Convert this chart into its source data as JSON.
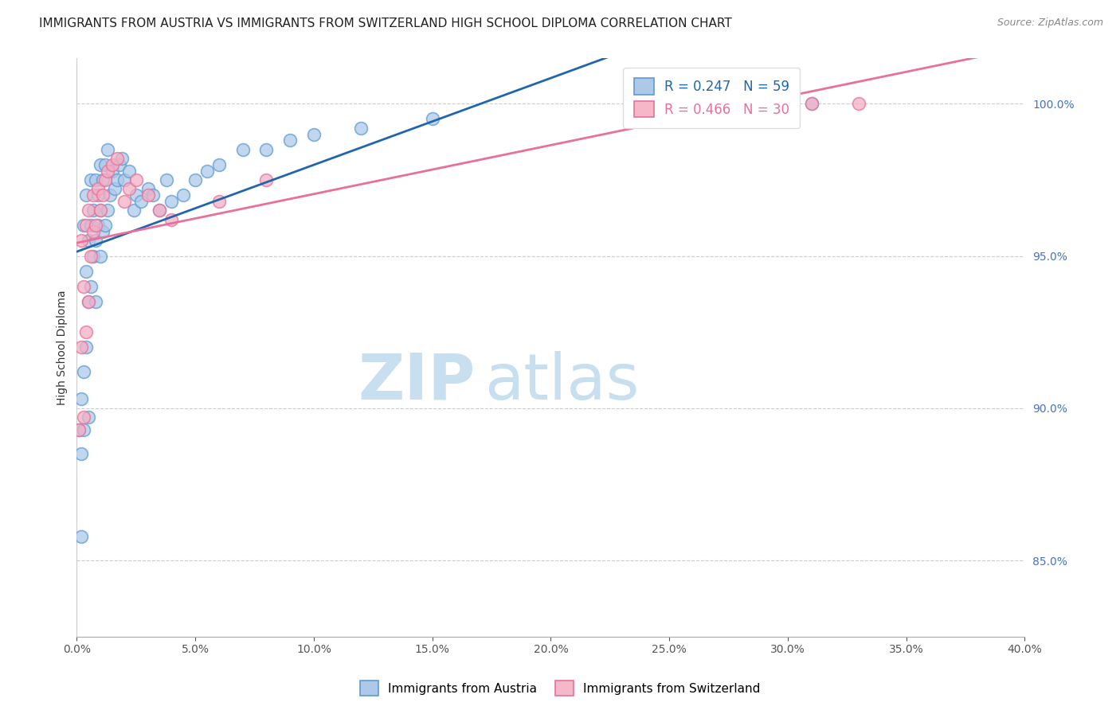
{
  "title": "IMMIGRANTS FROM AUSTRIA VS IMMIGRANTS FROM SWITZERLAND HIGH SCHOOL DIPLOMA CORRELATION CHART",
  "source": "Source: ZipAtlas.com",
  "xlabel": "",
  "ylabel": "High School Diploma",
  "xlim": [
    0.0,
    0.4
  ],
  "ylim": [
    0.825,
    1.015
  ],
  "xticks": [
    0.0,
    0.05,
    0.1,
    0.15,
    0.2,
    0.25,
    0.3,
    0.35,
    0.4
  ],
  "yticks": [
    0.85,
    0.9,
    0.95,
    1.0
  ],
  "austria_x": [
    0.001,
    0.002,
    0.002,
    0.002,
    0.003,
    0.003,
    0.003,
    0.004,
    0.004,
    0.004,
    0.005,
    0.005,
    0.005,
    0.006,
    0.006,
    0.006,
    0.007,
    0.007,
    0.008,
    0.008,
    0.008,
    0.009,
    0.009,
    0.01,
    0.01,
    0.01,
    0.011,
    0.011,
    0.012,
    0.012,
    0.013,
    0.013,
    0.014,
    0.015,
    0.016,
    0.017,
    0.018,
    0.019,
    0.02,
    0.022,
    0.024,
    0.025,
    0.027,
    0.03,
    0.032,
    0.035,
    0.038,
    0.04,
    0.045,
    0.05,
    0.055,
    0.06,
    0.07,
    0.08,
    0.09,
    0.1,
    0.12,
    0.15,
    0.31
  ],
  "austria_y": [
    0.893,
    0.858,
    0.885,
    0.903,
    0.893,
    0.912,
    0.96,
    0.92,
    0.945,
    0.97,
    0.897,
    0.935,
    0.955,
    0.94,
    0.96,
    0.975,
    0.95,
    0.965,
    0.935,
    0.955,
    0.975,
    0.96,
    0.97,
    0.95,
    0.965,
    0.98,
    0.958,
    0.975,
    0.96,
    0.98,
    0.965,
    0.985,
    0.97,
    0.978,
    0.972,
    0.975,
    0.98,
    0.982,
    0.975,
    0.978,
    0.965,
    0.97,
    0.968,
    0.972,
    0.97,
    0.965,
    0.975,
    0.968,
    0.97,
    0.975,
    0.978,
    0.98,
    0.985,
    0.985,
    0.988,
    0.99,
    0.992,
    0.995,
    1.0
  ],
  "switzerland_x": [
    0.001,
    0.002,
    0.002,
    0.003,
    0.003,
    0.004,
    0.004,
    0.005,
    0.005,
    0.006,
    0.007,
    0.007,
    0.008,
    0.009,
    0.01,
    0.011,
    0.012,
    0.013,
    0.015,
    0.017,
    0.02,
    0.022,
    0.025,
    0.03,
    0.035,
    0.04,
    0.06,
    0.08,
    0.31,
    0.33
  ],
  "switzerland_y": [
    0.893,
    0.92,
    0.955,
    0.897,
    0.94,
    0.925,
    0.96,
    0.935,
    0.965,
    0.95,
    0.958,
    0.97,
    0.96,
    0.972,
    0.965,
    0.97,
    0.975,
    0.978,
    0.98,
    0.982,
    0.968,
    0.972,
    0.975,
    0.97,
    0.965,
    0.962,
    0.968,
    0.975,
    1.0,
    1.0
  ],
  "austria_R": 0.247,
  "austria_N": 59,
  "switzerland_R": 0.466,
  "switzerland_N": 30,
  "austria_color": "#aec9e8",
  "switzerland_color": "#f4afc4",
  "austria_edge_color": "#5b9bd5",
  "switzerland_edge_color": "#e87099",
  "austria_line_color": "#2166ac",
  "switzerland_line_color": "#e87099",
  "legend_austria_fill": "#aec9e8",
  "legend_switzerland_fill": "#f4b8c8",
  "title_fontsize": 11,
  "axis_label_fontsize": 10,
  "tick_fontsize": 10,
  "source_fontsize": 9,
  "legend_fontsize": 12,
  "background_color": "#ffffff",
  "grid_color": "#cccccc",
  "watermark_zip": "ZIP",
  "watermark_atlas": "atlas",
  "watermark_color_zip": "#c8dff0",
  "watermark_color_atlas": "#c8dff0",
  "watermark_fontsize": 58
}
